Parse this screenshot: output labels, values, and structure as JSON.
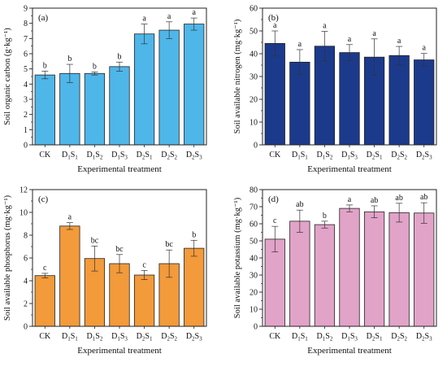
{
  "chart_data": [
    {
      "type": "bar",
      "panel_label": "(a)",
      "categories": [
        "CK",
        "D1S1",
        "D1S2",
        "D1S3",
        "D2S1",
        "D2S2",
        "D2S3"
      ],
      "values": [
        4.6,
        4.7,
        4.7,
        5.15,
        7.3,
        7.55,
        7.95
      ],
      "errors": [
        0.25,
        0.6,
        0.1,
        0.3,
        0.65,
        0.55,
        0.4
      ],
      "letters": [
        "b",
        "b",
        "b",
        "b",
        "a",
        "a",
        "a"
      ],
      "ylabel": "Soil organic carbon (g·kg⁻¹)",
      "xlabel": "Experimental treatment",
      "ylim": [
        0,
        9
      ],
      "yticks": [
        0,
        1,
        2,
        3,
        4,
        5,
        6,
        7,
        8,
        9
      ],
      "color": "#4fb6e9"
    },
    {
      "type": "bar",
      "panel_label": "(b)",
      "categories": [
        "CK",
        "D1S1",
        "D1S2",
        "D1S3",
        "D2S1",
        "D2S2",
        "D2S3"
      ],
      "values": [
        44.5,
        36.3,
        43.3,
        40.5,
        38.5,
        39.2,
        37.3
      ],
      "errors": [
        5.5,
        5.5,
        6.5,
        3.5,
        8.0,
        4.0,
        2.8
      ],
      "letters": [
        "a",
        "a",
        "a",
        "a",
        "a",
        "a",
        "a"
      ],
      "ylabel": "Soil available nitrogen (mg·kg⁻¹)",
      "xlabel": "Experimental treatment",
      "ylim": [
        0,
        60
      ],
      "yticks": [
        0,
        10,
        20,
        30,
        40,
        50,
        60
      ],
      "color": "#1c3a8c"
    },
    {
      "type": "bar",
      "panel_label": "(c)",
      "categories": [
        "CK",
        "D1S1",
        "D1S2",
        "D1S3",
        "D2S1",
        "D2S2",
        "D2S3"
      ],
      "values": [
        4.45,
        8.8,
        5.95,
        5.5,
        4.5,
        5.5,
        6.85
      ],
      "errors": [
        0.2,
        0.3,
        1.1,
        0.8,
        0.4,
        1.2,
        0.7
      ],
      "letters": [
        "c",
        "a",
        "bc",
        "bc",
        "c",
        "bc",
        "b"
      ],
      "ylabel": "Soil available phosphorus (mg·kg⁻¹)",
      "xlabel": "Experimental treatment",
      "ylim": [
        0,
        12
      ],
      "yticks": [
        0,
        2,
        4,
        6,
        8,
        10,
        12
      ],
      "color": "#f39a3a"
    },
    {
      "type": "bar",
      "panel_label": "(d)",
      "categories": [
        "CK",
        "D1S1",
        "D1S2",
        "D1S3",
        "D2S1",
        "D2S2",
        "D2S3"
      ],
      "values": [
        51,
        61.5,
        59.5,
        69,
        67,
        66.5,
        66.3
      ],
      "errors": [
        7.5,
        6.5,
        2.0,
        2.0,
        3.5,
        5.5,
        6.0
      ],
      "letters": [
        "c",
        "ab",
        "b",
        "a",
        "ab",
        "ab",
        "ab"
      ],
      "ylabel": "Soil available potassium (mg·kg⁻¹)",
      "xlabel": "Experimental treatment",
      "ylim": [
        0,
        80
      ],
      "yticks": [
        0,
        10,
        20,
        30,
        40,
        50,
        60,
        70,
        80
      ],
      "color": "#e2a3c8"
    }
  ]
}
